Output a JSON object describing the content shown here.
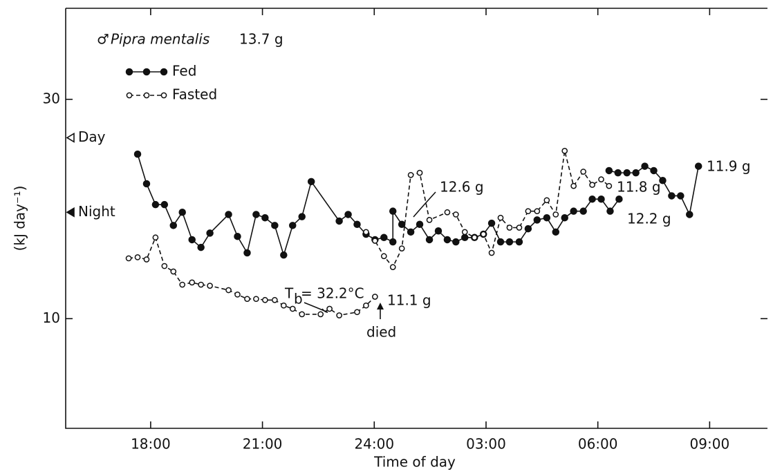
{
  "chart_data": {
    "type": "line",
    "title": {
      "symbol": "♂",
      "species": "Pipra mentalis",
      "mass": "13.7 g"
    },
    "xlabel": "Time of day",
    "ylabel": "(kJ day⁻¹)",
    "xlim": [
      15.72,
      34.7
    ],
    "ylim": [
      0,
      38.3
    ],
    "xticks": [
      {
        "value": 18,
        "label": "18:00"
      },
      {
        "value": 21,
        "label": "21:00"
      },
      {
        "value": 24,
        "label": "24:00"
      },
      {
        "value": 27,
        "label": "03:00"
      },
      {
        "value": 30,
        "label": "06:00"
      },
      {
        "value": 33,
        "label": "09:00"
      }
    ],
    "yticks": [
      10,
      30
    ],
    "legend": "top-left",
    "markers": [
      {
        "label": "Day",
        "value": 26.5,
        "filled": false
      },
      {
        "label": "Night",
        "value": 19.7,
        "filled": true
      }
    ],
    "series": [
      {
        "name": "Fed",
        "color": "#111111",
        "filled": true,
        "dashed": false,
        "x": [
          17.65,
          17.89,
          18.13,
          18.37,
          18.61,
          18.85,
          19.11,
          19.35,
          19.59,
          20.09,
          20.33,
          20.59,
          20.83,
          21.07,
          21.33,
          21.57,
          21.81,
          22.06,
          22.31,
          23.06,
          23.3,
          23.54,
          23.78,
          24.02,
          24.26,
          24.5,
          24.5,
          24.74,
          24.98,
          25.22,
          25.48,
          25.72,
          25.96,
          26.19,
          26.43,
          26.69,
          26.93,
          27.15,
          27.39,
          27.63,
          27.89,
          28.13,
          28.37,
          28.63,
          28.87,
          29.11,
          29.35,
          29.61,
          29.85,
          30.09,
          30.33,
          30.57,
          null,
          30.3,
          30.54,
          30.78,
          31.02,
          31.26,
          31.5,
          31.74,
          31.98,
          32.22,
          32.46,
          32.7
        ],
        "values": [
          25.0,
          22.3,
          20.4,
          20.4,
          18.5,
          19.7,
          17.2,
          16.5,
          17.8,
          19.5,
          17.5,
          16.0,
          19.5,
          19.2,
          18.5,
          15.8,
          18.5,
          19.3,
          22.5,
          18.9,
          19.5,
          18.6,
          17.7,
          17.2,
          17.4,
          17.0,
          19.8,
          18.6,
          17.9,
          18.6,
          17.2,
          18.0,
          17.2,
          17.0,
          17.4,
          17.4,
          17.7,
          18.7,
          17.0,
          17.0,
          17.0,
          18.2,
          19.0,
          19.2,
          17.9,
          19.2,
          19.8,
          19.8,
          20.9,
          20.9,
          19.8,
          20.9,
          null,
          23.5,
          23.3,
          23.3,
          23.3,
          23.9,
          23.5,
          22.6,
          21.2,
          21.2,
          19.5,
          23.9
        ]
      },
      {
        "name": "Fasted",
        "color": "#111111",
        "filled": false,
        "dashed": true,
        "x": [
          17.41,
          17.65,
          17.89,
          18.13,
          18.37,
          18.61,
          18.85,
          19.11,
          19.35,
          19.59,
          20.09,
          20.33,
          20.59,
          20.83,
          21.07,
          21.33,
          21.57,
          21.81,
          22.06,
          22.56,
          22.8,
          23.06,
          23.54,
          23.78,
          24.02,
          null,
          23.78,
          24.02,
          24.26,
          24.5,
          24.74,
          24.98,
          25.22,
          25.48,
          25.96,
          26.19,
          26.43,
          26.69,
          26.93,
          27.15,
          27.39,
          27.63,
          27.89,
          28.13,
          28.37,
          28.63,
          28.87,
          29.11,
          29.35,
          29.61,
          29.85,
          30.09,
          30.3
        ],
        "values": [
          15.5,
          15.6,
          15.4,
          17.4,
          14.8,
          14.3,
          13.1,
          13.3,
          13.1,
          13.0,
          12.6,
          12.2,
          11.8,
          11.8,
          11.7,
          11.7,
          11.2,
          10.9,
          10.4,
          10.4,
          10.9,
          10.3,
          10.6,
          11.2,
          12.0,
          null,
          17.9,
          17.1,
          15.7,
          14.7,
          16.4,
          23.1,
          23.3,
          19.0,
          19.7,
          19.5,
          17.9,
          17.4,
          17.7,
          16.0,
          19.2,
          18.3,
          18.3,
          19.8,
          19.8,
          20.8,
          19.5,
          25.3,
          22.1,
          23.4,
          22.2,
          22.7,
          22.1
        ]
      }
    ],
    "annotations": {
      "fed_end1": "12.2 g",
      "fed_end2": "11.9 g",
      "fasted_end2": "11.8 g",
      "mid": "12.6 g",
      "fasted_end1": "11.1 g",
      "died": "died",
      "tb": {
        "symbol": "T",
        "sub": "b",
        "rest": "= 32.2°C"
      }
    }
  }
}
